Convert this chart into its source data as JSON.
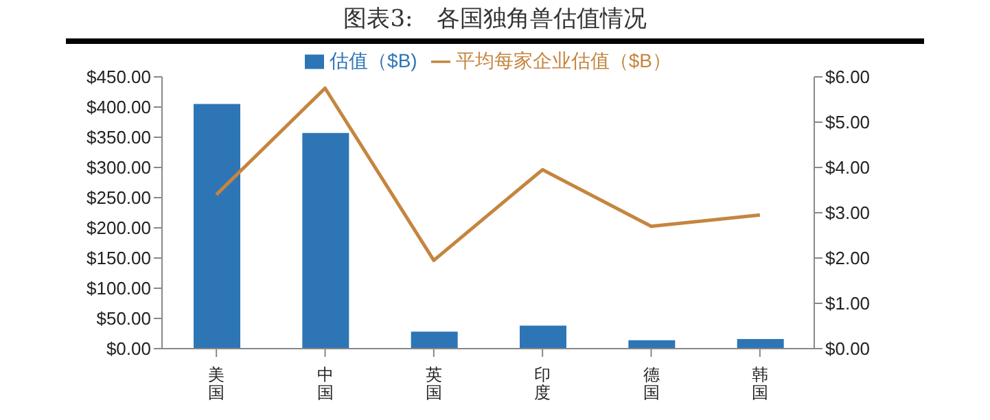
{
  "chart_data": {
    "type": "bar",
    "title": "图表3:　各国独角兽估值情况",
    "categories": [
      "美国",
      "中国",
      "英国",
      "印度",
      "德国",
      "韩国"
    ],
    "series": [
      {
        "name": "估值（$B)",
        "type": "bar",
        "color": "#2e75b6",
        "values": [
          405,
          357,
          28,
          38,
          14,
          16
        ]
      },
      {
        "name": "平均每家企业估值（$B）",
        "type": "line",
        "axis": "y2",
        "color": "#c5853f",
        "values": [
          3.4,
          5.75,
          1.95,
          3.95,
          2.7,
          2.95
        ]
      }
    ],
    "ylim": [
      0,
      450
    ],
    "yticks": [
      {
        "value": 0,
        "label": "$0.00"
      },
      {
        "value": 50,
        "label": "$50.00"
      },
      {
        "value": 100,
        "label": "$100.00"
      },
      {
        "value": 150,
        "label": "$150.00"
      },
      {
        "value": 200,
        "label": "$200.00"
      },
      {
        "value": 250,
        "label": "$250.00"
      },
      {
        "value": 300,
        "label": "$300.00"
      },
      {
        "value": 350,
        "label": "$350.00"
      },
      {
        "value": 400,
        "label": "$400.00"
      },
      {
        "value": 450,
        "label": "$450.00"
      }
    ],
    "y2lim": [
      0,
      6
    ],
    "y2ticks": [
      {
        "value": 0,
        "label": "$0.00"
      },
      {
        "value": 1,
        "label": "$1.00"
      },
      {
        "value": 2,
        "label": "$2.00"
      },
      {
        "value": 3,
        "label": "$3.00"
      },
      {
        "value": 4,
        "label": "$4.00"
      },
      {
        "value": 5,
        "label": "$5.00"
      },
      {
        "value": 6,
        "label": "$6.00"
      }
    ],
    "legend": "top",
    "grid": false,
    "marker": "none"
  }
}
